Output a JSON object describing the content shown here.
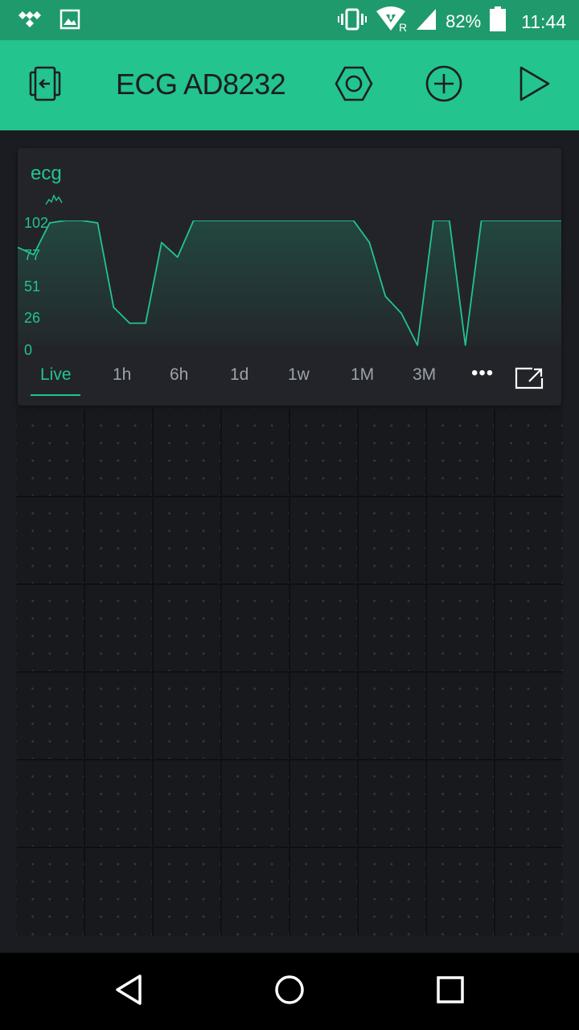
{
  "status_bar": {
    "battery_percent": "82%",
    "time": "11:44",
    "network_label": "R",
    "icons": [
      "tidal-icon",
      "image-icon",
      "vibrate-icon",
      "wifi-icon",
      "signal-icon",
      "battery-icon"
    ]
  },
  "app_bar": {
    "title": "ECG AD8232",
    "icons": [
      "exit-icon",
      "settings-hex-icon",
      "add-circle-icon",
      "play-icon"
    ]
  },
  "widget": {
    "title": "ecg",
    "legend_icon": "chart-line-icon",
    "tabs": [
      "Live",
      "1h",
      "6h",
      "1d",
      "1w",
      "1M",
      "3M"
    ],
    "active_tab": "Live",
    "more_label": "•••",
    "expand_icon": "expand-icon"
  },
  "chart_data": {
    "type": "area",
    "title": "ecg",
    "y_ticks": [
      "102",
      "77",
      "51",
      "26",
      "0"
    ],
    "ylim": [
      0,
      102
    ],
    "series": [
      {
        "color": "#23c48e",
        "values": [
          80,
          74,
          100,
          102,
          102,
          100,
          31,
          18,
          18,
          84,
          72,
          102,
          102,
          102,
          102,
          102,
          102,
          102,
          102,
          102,
          102,
          102,
          84,
          40,
          26,
          0,
          102,
          102,
          0,
          102,
          102,
          102,
          102,
          102,
          102
        ]
      }
    ]
  },
  "nav_bar": {
    "icons": [
      "back-icon",
      "home-icon",
      "recents-icon"
    ]
  },
  "colors": {
    "accent": "#23c48e",
    "status_bar": "#1f9a6c",
    "background": "#1b1c21",
    "widget_bg": "#23242a"
  }
}
